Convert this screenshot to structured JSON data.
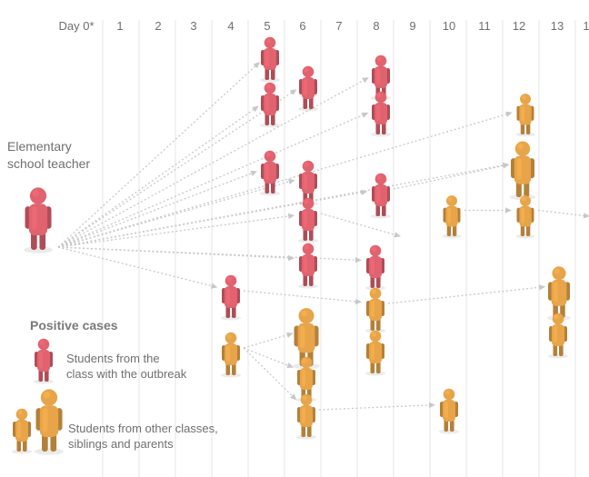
{
  "timeline": {
    "days": [
      "Day 0*",
      "1",
      "2",
      "3",
      "4",
      "5",
      "6",
      "7",
      "8",
      "9",
      "10",
      "11",
      "12",
      "13",
      "1"
    ]
  },
  "source_label": {
    "line1": "Elementary",
    "line2": "school teacher"
  },
  "legend": {
    "title": "Positive cases",
    "red": {
      "line1": "Students from the",
      "line2": "class with the outbreak"
    },
    "orange": {
      "line1": "Students from other classes,",
      "line2": "siblings and parents"
    }
  },
  "colors": {
    "red": "#e0636f",
    "orange": "#e7a449",
    "arrow": "#c8c8c8",
    "gridline": "#e6e6e6",
    "text": "#6f6f6f"
  },
  "nodes": [
    {
      "id": "teacher",
      "group": "red",
      "day": 0
    },
    {
      "id": "r1",
      "group": "red",
      "day": 5
    },
    {
      "id": "r2",
      "group": "red",
      "day": 5
    },
    {
      "id": "r3",
      "group": "red",
      "day": 5
    },
    {
      "id": "r4",
      "group": "red",
      "day": 6
    },
    {
      "id": "r5",
      "group": "red",
      "day": 6
    },
    {
      "id": "r6",
      "group": "red",
      "day": 6
    },
    {
      "id": "r7",
      "group": "red",
      "day": 6
    },
    {
      "id": "r8",
      "group": "red",
      "day": 8
    },
    {
      "id": "r9",
      "group": "red",
      "day": 8
    },
    {
      "id": "r10",
      "group": "red",
      "day": 8
    },
    {
      "id": "r11",
      "group": "red",
      "day": 8
    },
    {
      "id": "r12",
      "group": "red",
      "day": 4
    },
    {
      "id": "o1",
      "group": "orange",
      "day": 12
    },
    {
      "id": "o2",
      "group": "orange",
      "day": 12
    },
    {
      "id": "o3",
      "group": "orange",
      "day": 12
    },
    {
      "id": "o4",
      "group": "orange",
      "day": 10
    },
    {
      "id": "o5",
      "group": "orange",
      "day": 8
    },
    {
      "id": "o6",
      "group": "orange",
      "day": 8
    },
    {
      "id": "o7",
      "group": "orange",
      "day": 13
    },
    {
      "id": "o8",
      "group": "orange",
      "day": 13
    },
    {
      "id": "o9",
      "group": "orange",
      "day": 4
    },
    {
      "id": "o10",
      "group": "orange",
      "day": 6
    },
    {
      "id": "o11",
      "group": "orange",
      "day": 6
    },
    {
      "id": "o12",
      "group": "orange",
      "day": 6
    },
    {
      "id": "o13",
      "group": "orange",
      "day": 10
    }
  ],
  "edges": [
    {
      "from": "teacher",
      "to": "r1"
    },
    {
      "from": "teacher",
      "to": "r2"
    },
    {
      "from": "teacher",
      "to": "r3"
    },
    {
      "from": "teacher",
      "to": "r4"
    },
    {
      "from": "teacher",
      "to": "r5"
    },
    {
      "from": "teacher",
      "to": "r6"
    },
    {
      "from": "teacher",
      "to": "r7"
    },
    {
      "from": "teacher",
      "to": "r8"
    },
    {
      "from": "teacher",
      "to": "r9"
    },
    {
      "from": "teacher",
      "to": "r10"
    },
    {
      "from": "teacher",
      "to": "r11"
    },
    {
      "from": "teacher",
      "to": "r12"
    },
    {
      "from": "teacher",
      "to": "o1"
    },
    {
      "from": "teacher",
      "to": "o2"
    },
    {
      "from": "r10",
      "to": "o2"
    },
    {
      "from": "r6",
      "to": "day-9"
    },
    {
      "from": "o4",
      "to": "o3"
    },
    {
      "from": "o3",
      "to": "day-14"
    },
    {
      "from": "r12",
      "to": "o5"
    },
    {
      "from": "o5",
      "to": "o7"
    },
    {
      "from": "o9",
      "to": "o10"
    },
    {
      "from": "o9",
      "to": "o11"
    },
    {
      "from": "o9",
      "to": "o12"
    },
    {
      "from": "o12",
      "to": "o13"
    }
  ]
}
